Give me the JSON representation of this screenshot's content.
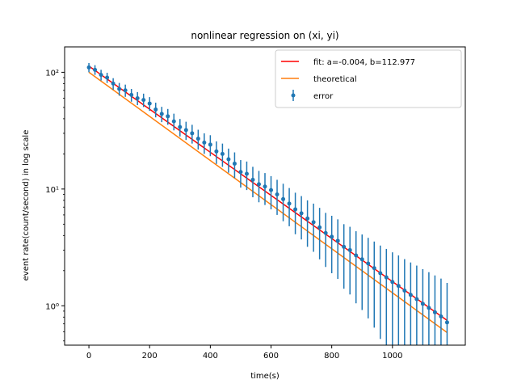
{
  "chart_data": {
    "type": "scatter",
    "title": "nonlinear regression on (xi, yi)",
    "xlabel": "time(s)",
    "ylabel": "event rate(count/second) in log scale",
    "xlim": [
      -80,
      1240
    ],
    "ylim": [
      0.46,
      165
    ],
    "yscale": "log",
    "grid": false,
    "legend_position": "top-right",
    "x_ticks": [
      0,
      200,
      400,
      600,
      800,
      1000
    ],
    "y_ticks": [
      {
        "value": 1,
        "label": "10⁰"
      },
      {
        "value": 10,
        "label": "10¹"
      },
      {
        "value": 100,
        "label": "10²"
      }
    ],
    "colors": {
      "fit": "#ff0000",
      "theoretical": "#ff7f0e",
      "error": "#1f77b4"
    },
    "series": [
      {
        "name": "fit: a=-0.004, b=112.977",
        "kind": "line",
        "x": [
          0,
          1180
        ],
        "y": [
          112.977,
          0.75
        ]
      },
      {
        "name": "theoretical",
        "kind": "line",
        "x": [
          0,
          1180
        ],
        "y": [
          100,
          0.59
        ]
      },
      {
        "name": "error",
        "kind": "errorbar",
        "x": [
          0,
          20,
          40,
          60,
          80,
          100,
          120,
          140,
          160,
          180,
          200,
          220,
          240,
          260,
          280,
          300,
          320,
          340,
          360,
          380,
          400,
          420,
          440,
          460,
          480,
          500,
          520,
          540,
          560,
          580,
          600,
          620,
          640,
          660,
          680,
          700,
          720,
          740,
          760,
          780,
          800,
          820,
          840,
          860,
          880,
          900,
          920,
          940,
          960,
          980,
          1000,
          1020,
          1040,
          1060,
          1080,
          1100,
          1120,
          1140,
          1160,
          1180
        ],
        "y": [
          110,
          105,
          95,
          90,
          80,
          72,
          70,
          64,
          60,
          58,
          54,
          48,
          44,
          42,
          38,
          34,
          32,
          30,
          27,
          25,
          24,
          21,
          20,
          18,
          16.5,
          14,
          13.5,
          12,
          11,
          10.5,
          9.8,
          9,
          8.2,
          7.5,
          6.7,
          6.2,
          5.6,
          5.2,
          4.7,
          4.2,
          3.9,
          3.6,
          3.2,
          3.0,
          2.7,
          2.5,
          2.3,
          2.1,
          1.9,
          1.75,
          1.6,
          1.48,
          1.35,
          1.24,
          1.14,
          1.04,
          0.96,
          0.88,
          0.81,
          0.72
        ],
        "yerr": [
          10,
          10,
          10,
          9,
          9,
          9,
          8.4,
          8,
          7.7,
          7.6,
          7.3,
          6.9,
          6.6,
          6.5,
          6.2,
          5.8,
          5.7,
          5.5,
          5.2,
          5,
          4.9,
          4.6,
          4.5,
          4.2,
          4.1,
          3.7,
          3.7,
          3.5,
          3.3,
          3.2,
          3.1,
          3,
          2.9,
          2.7,
          2.6,
          2.5,
          2.4,
          2.3,
          2.2,
          2.05,
          2,
          1.9,
          1.8,
          1.75,
          1.65,
          1.58,
          1.52,
          1.45,
          1.38,
          1.32,
          1.27,
          1.22,
          1.16,
          1.11,
          1.07,
          1.02,
          0.98,
          0.94,
          0.9,
          0.85
        ]
      }
    ]
  }
}
